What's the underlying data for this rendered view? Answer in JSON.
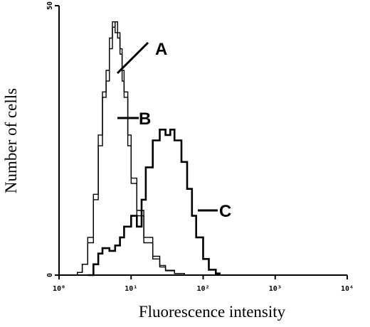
{
  "chart_data": {
    "type": "line",
    "title": "",
    "xlabel": "Fluorescence intensity",
    "ylabel": "Number of cells",
    "x_scale": "log",
    "xlim": [
      1,
      10000
    ],
    "ylim": [
      0,
      50
    ],
    "x_ticks": [
      {
        "value": 1,
        "label": "10⁰"
      },
      {
        "value": 10,
        "label": "10¹"
      },
      {
        "value": 100,
        "label": "10²"
      },
      {
        "value": 1000,
        "label": "10³"
      },
      {
        "value": 10000,
        "label": "10⁴"
      }
    ],
    "y_ticks": [
      {
        "value": 0,
        "label": "0"
      },
      {
        "value": 50,
        "label": "50"
      }
    ],
    "grid": false,
    "legend": "none",
    "series": [
      {
        "name": "A",
        "x": [
          1.3,
          1.8,
          2.1,
          2.5,
          3.0,
          3.5,
          4.0,
          4.5,
          5.0,
          5.5,
          6.0,
          6.5,
          7.0,
          7.5,
          8.0,
          9.0,
          10.0,
          12.0,
          15.0,
          20.0,
          25.0,
          30.0,
          40.0,
          55.0
        ],
        "y": [
          0,
          0.5,
          2,
          7,
          15,
          26,
          34,
          38,
          44,
          47,
          45,
          44,
          42,
          36,
          33,
          24,
          17,
          11,
          6,
          3,
          1.5,
          0.8,
          0.3,
          0
        ]
      },
      {
        "name": "B",
        "x": [
          1.3,
          1.8,
          2.1,
          2.5,
          3.0,
          3.5,
          4.0,
          4.5,
          5.0,
          5.5,
          6.0,
          6.5,
          7.0,
          7.5,
          8.0,
          9.0,
          10.0,
          12.0,
          15.0,
          20.0,
          25.0,
          30.0,
          40.0,
          55.0
        ],
        "y": [
          0,
          0.5,
          2,
          6,
          14,
          24,
          33,
          36,
          42,
          46,
          47,
          45,
          41,
          38,
          34,
          26,
          18,
          12,
          7,
          3.5,
          1.8,
          0.9,
          0.3,
          0
        ]
      },
      {
        "name": "C",
        "x": [
          2.5,
          3.0,
          3.5,
          4.0,
          5.0,
          6.0,
          7.0,
          8.0,
          10.0,
          12.0,
          14.0,
          16.0,
          20.0,
          25.0,
          30.0,
          35.0,
          40.0,
          50.0,
          60.0,
          70.0,
          80.0,
          100.0,
          120.0,
          150.0,
          170.0
        ],
        "y": [
          0,
          2,
          4,
          5,
          4.5,
          5.5,
          7,
          9,
          11,
          9,
          14,
          20,
          25,
          27,
          26,
          27,
          25,
          21,
          16,
          11,
          7,
          3,
          1,
          0.3,
          0
        ]
      }
    ],
    "curve_labels": [
      "A",
      "B",
      "C"
    ]
  }
}
